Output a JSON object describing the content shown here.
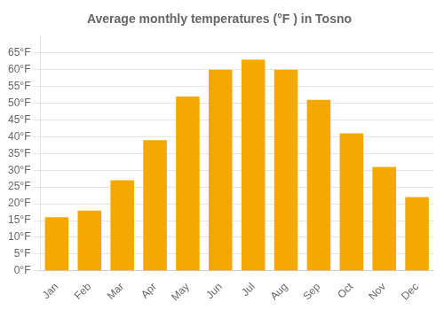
{
  "chart_data": {
    "type": "bar",
    "title": "Average monthly temperatures (°F ) in Tosno",
    "categories": [
      "Jan",
      "Feb",
      "Mar",
      "Apr",
      "May",
      "Jun",
      "Jul",
      "Aug",
      "Sep",
      "Oct",
      "Nov",
      "Dec"
    ],
    "values": [
      16,
      18,
      27,
      39,
      52,
      60,
      63,
      60,
      51,
      41,
      31,
      22
    ],
    "color": "#F5A800",
    "ylim": [
      0,
      70
    ],
    "yticks": [
      {
        "value": 0,
        "label": "0°F"
      },
      {
        "value": 5,
        "label": "5°F"
      },
      {
        "value": 10,
        "label": "10°F"
      },
      {
        "value": 15,
        "label": "15°F"
      },
      {
        "value": 20,
        "label": "20°F"
      },
      {
        "value": 25,
        "label": "25°F"
      },
      {
        "value": 30,
        "label": "30°F"
      },
      {
        "value": 35,
        "label": "35°F"
      },
      {
        "value": 40,
        "label": "40°F"
      },
      {
        "value": 45,
        "label": "45°F"
      },
      {
        "value": 50,
        "label": "50°F"
      },
      {
        "value": 55,
        "label": "55°F"
      },
      {
        "value": 60,
        "label": "60°F"
      },
      {
        "value": 65,
        "label": "65°F"
      }
    ],
    "grid": true
  }
}
